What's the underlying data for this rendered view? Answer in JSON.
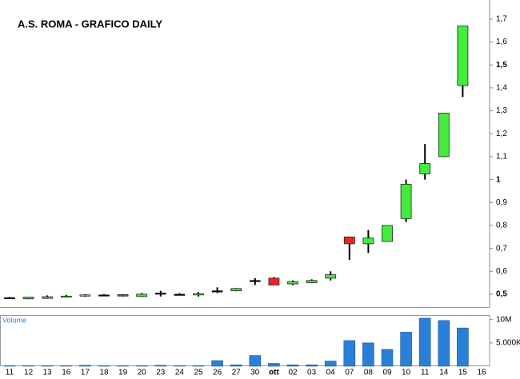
{
  "chart_data": {
    "type": "candlestick",
    "title": "A.S. ROMA - GRAFICO DAILY",
    "categories": [
      "11",
      "12",
      "13",
      "16",
      "17",
      "18",
      "19",
      "20",
      "23",
      "24",
      "25",
      "26",
      "27",
      "30",
      "ott",
      "02",
      "03",
      "04",
      "07",
      "08",
      "09",
      "10",
      "11",
      "14",
      "15",
      "16"
    ],
    "open": [
      0.485,
      0.48,
      0.482,
      0.49,
      0.495,
      0.497,
      0.498,
      0.49,
      0.505,
      0.5,
      0.5,
      0.515,
      0.515,
      0.56,
      0.57,
      0.545,
      0.55,
      0.57,
      0.75,
      0.72,
      0.73,
      0.83,
      1.025,
      1.1,
      1.41,
      null
    ],
    "high": [
      0.488,
      0.488,
      0.495,
      0.497,
      0.5,
      0.5,
      0.5,
      0.505,
      0.515,
      0.505,
      0.51,
      0.53,
      0.527,
      0.57,
      0.575,
      0.56,
      0.565,
      0.6,
      0.75,
      0.78,
      0.8,
      1.0,
      1.155,
      1.29,
      1.67,
      null
    ],
    "low": [
      0.482,
      0.478,
      0.48,
      0.485,
      0.49,
      0.494,
      0.49,
      0.488,
      0.49,
      0.495,
      0.49,
      0.505,
      0.513,
      0.54,
      0.54,
      0.54,
      0.548,
      0.56,
      0.65,
      0.68,
      0.73,
      0.815,
      1.0,
      1.1,
      1.36,
      null
    ],
    "close": [
      0.485,
      0.487,
      0.489,
      0.492,
      0.497,
      0.497,
      0.492,
      0.5,
      0.505,
      0.5,
      0.502,
      0.515,
      0.525,
      0.56,
      0.54,
      0.555,
      0.56,
      0.585,
      0.72,
      0.745,
      0.8,
      0.98,
      1.07,
      1.29,
      1.67,
      null
    ],
    "up_color": "#44ec3c",
    "down_color": "#ee2424",
    "doji_color": "#000000",
    "ylim": [
      0.458,
      1.766
    ],
    "yticks": [
      {
        "value": 0.5,
        "label": "0,5"
      },
      {
        "value": 0.6,
        "label": "0,6"
      },
      {
        "value": 0.7,
        "label": "0,7"
      },
      {
        "value": 0.8,
        "label": "0,8"
      },
      {
        "value": 0.9,
        "label": "0,9"
      },
      1,
      {
        "value": 1.1,
        "label": "1,1"
      },
      {
        "value": 1.2,
        "label": "1,2"
      },
      {
        "value": 1.3,
        "label": "1,3"
      },
      {
        "value": 1.4,
        "label": "1,4"
      },
      {
        "value": 1.5,
        "label": "1,5"
      },
      {
        "value": 1.6,
        "label": "1,6"
      },
      {
        "value": 1.7,
        "label": "1,7"
      }
    ],
    "volume_label": "Volume",
    "volume_color": "#2a7fd8",
    "volume": [
      100000,
      100000,
      100000,
      100000,
      200000,
      100000,
      100000,
      100000,
      200000,
      100000,
      100000,
      1200000,
      300000,
      2300000,
      600000,
      300000,
      300000,
      1100000,
      5500000,
      5000000,
      3600000,
      7300000,
      10300000,
      9800000,
      8200000,
      null
    ],
    "volume_ylim": [
      0,
      10800000
    ],
    "volume_yticks": [
      {
        "value": 5000000,
        "label": "5.000K"
      },
      {
        "value": 10000000,
        "label": "10M"
      }
    ]
  }
}
